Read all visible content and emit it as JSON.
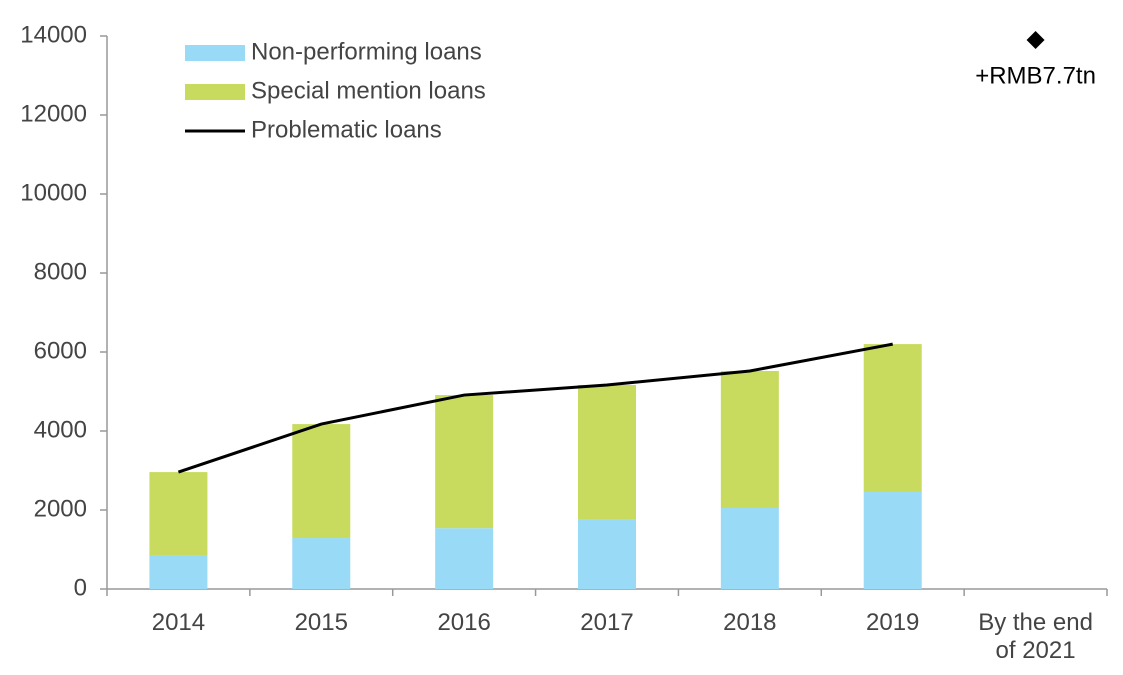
{
  "chart_data": {
    "type": "bar",
    "categories": [
      "2014",
      "2015",
      "2016",
      "2017",
      "2018",
      "2019",
      "By the end of 2021"
    ],
    "series": [
      {
        "name": "Non-performing loans",
        "color": "#99dbf7",
        "values": [
          860,
          1290,
          1540,
          1750,
          2050,
          2455,
          null
        ]
      },
      {
        "name": "Special mention loans",
        "color": "#c9db5f",
        "values": [
          2100,
          2885,
          3370,
          3415,
          3470,
          3745,
          null
        ]
      },
      {
        "name": "Problematic loans",
        "type": "line",
        "color": "#000000",
        "values": [
          2960,
          4175,
          4910,
          5165,
          5520,
          6200,
          null
        ]
      }
    ],
    "points": {
      "marker": "diamond",
      "color": "#000000",
      "values": [
        null,
        null,
        null,
        null,
        null,
        null,
        13900
      ],
      "label": "+RMB7.7tn"
    },
    "ylim": [
      0,
      14000
    ],
    "yticks": [
      0,
      2000,
      4000,
      6000,
      8000,
      10000,
      12000,
      14000
    ],
    "stacked": true,
    "grid": false,
    "legend": "top-left"
  }
}
